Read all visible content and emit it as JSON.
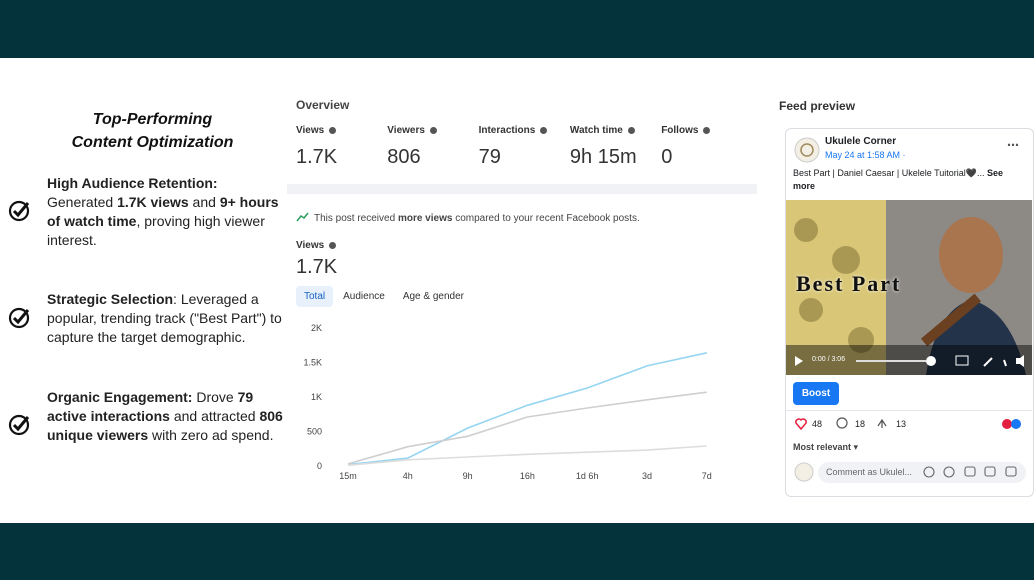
{
  "slide": {
    "title_lines": [
      "Top-Performing",
      "Content Optimization"
    ],
    "bullets": [
      {
        "segments": [
          {
            "text": "High Audience Retention:",
            "bold": true,
            "block": true
          },
          {
            "text": "Generated ",
            "bold": false
          },
          {
            "text": "1.7K views",
            "bold": true
          },
          {
            "text": " and ",
            "bold": false
          },
          {
            "text": "9+ hours of watch time",
            "bold": true
          },
          {
            "text": ", proving high viewer interest.",
            "bold": false
          }
        ]
      },
      {
        "segments": [
          {
            "text": "Strategic Selection",
            "bold": true
          },
          {
            "text": ": Leveraged a popular, trending track (\"Best Part\") to capture the target demographic.",
            "bold": false
          }
        ]
      },
      {
        "segments": [
          {
            "text": "Organic Engagement:",
            "bold": true
          },
          {
            "text": " Drove ",
            "bold": false
          },
          {
            "text": "79 active interactions",
            "bold": true
          },
          {
            "text": " and attracted ",
            "bold": false
          },
          {
            "text": "806 unique viewers",
            "bold": true
          },
          {
            "text": " with zero ad spend.",
            "bold": false
          }
        ]
      }
    ]
  },
  "overview": {
    "title": "Overview",
    "stats": [
      {
        "label": "Views",
        "value": "1.7K"
      },
      {
        "label": "Viewers",
        "value": "806"
      },
      {
        "label": "Interactions",
        "value": "79"
      },
      {
        "label": "Watch time",
        "value": "9h 15m"
      },
      {
        "label": "Follows",
        "value": "0"
      }
    ]
  },
  "notice": {
    "segments": [
      {
        "text": "This post received ",
        "bold": false
      },
      {
        "text": "more views",
        "bold": true
      },
      {
        "text": " compared to your recent Facebook posts.",
        "bold": false
      }
    ]
  },
  "views_card": {
    "label": "Views",
    "value": "1.7K",
    "tabs": [
      "Total",
      "Audience",
      "Age & gender"
    ],
    "active_tab": 0
  },
  "chart_data": {
    "type": "line",
    "categories": [
      "15m",
      "4h",
      "9h",
      "16h",
      "1d 6h",
      "3d",
      "7d"
    ],
    "series": [
      {
        "color": "#95d5f2",
        "values": [
          20,
          115,
          550,
          880,
          1130,
          1450,
          1640
        ]
      },
      {
        "color": "#cfcfcf",
        "values": [
          30,
          280,
          430,
          710,
          840,
          960,
          1070
        ]
      },
      {
        "color": "#dddddd",
        "values": [
          10,
          90,
          130,
          170,
          200,
          230,
          290
        ]
      }
    ],
    "ylim": [
      0,
      2000
    ],
    "yticks": [
      0,
      500,
      {
        "value": 1000,
        "label": "1K"
      },
      {
        "value": 1500,
        "label": "1.5K"
      },
      {
        "value": 2000,
        "label": "2K"
      }
    ],
    "grid": false
  },
  "feed_preview": {
    "title": "Feed preview",
    "page_name": "Ukulele Corner",
    "date": "May 24 at 1:58 AM ·",
    "caption": "Best Part | Daniel Caesar | Ukelele Tuitorial🖤...",
    "see_more": "See more",
    "video_overlay": "Best Part",
    "video_time": "0:00 / 3:06",
    "boost": "Boost",
    "reactions": "48",
    "comments": "18",
    "shares": "13",
    "sort": "Most relevant",
    "comment_placeholder": "Comment as Ukulel..."
  }
}
